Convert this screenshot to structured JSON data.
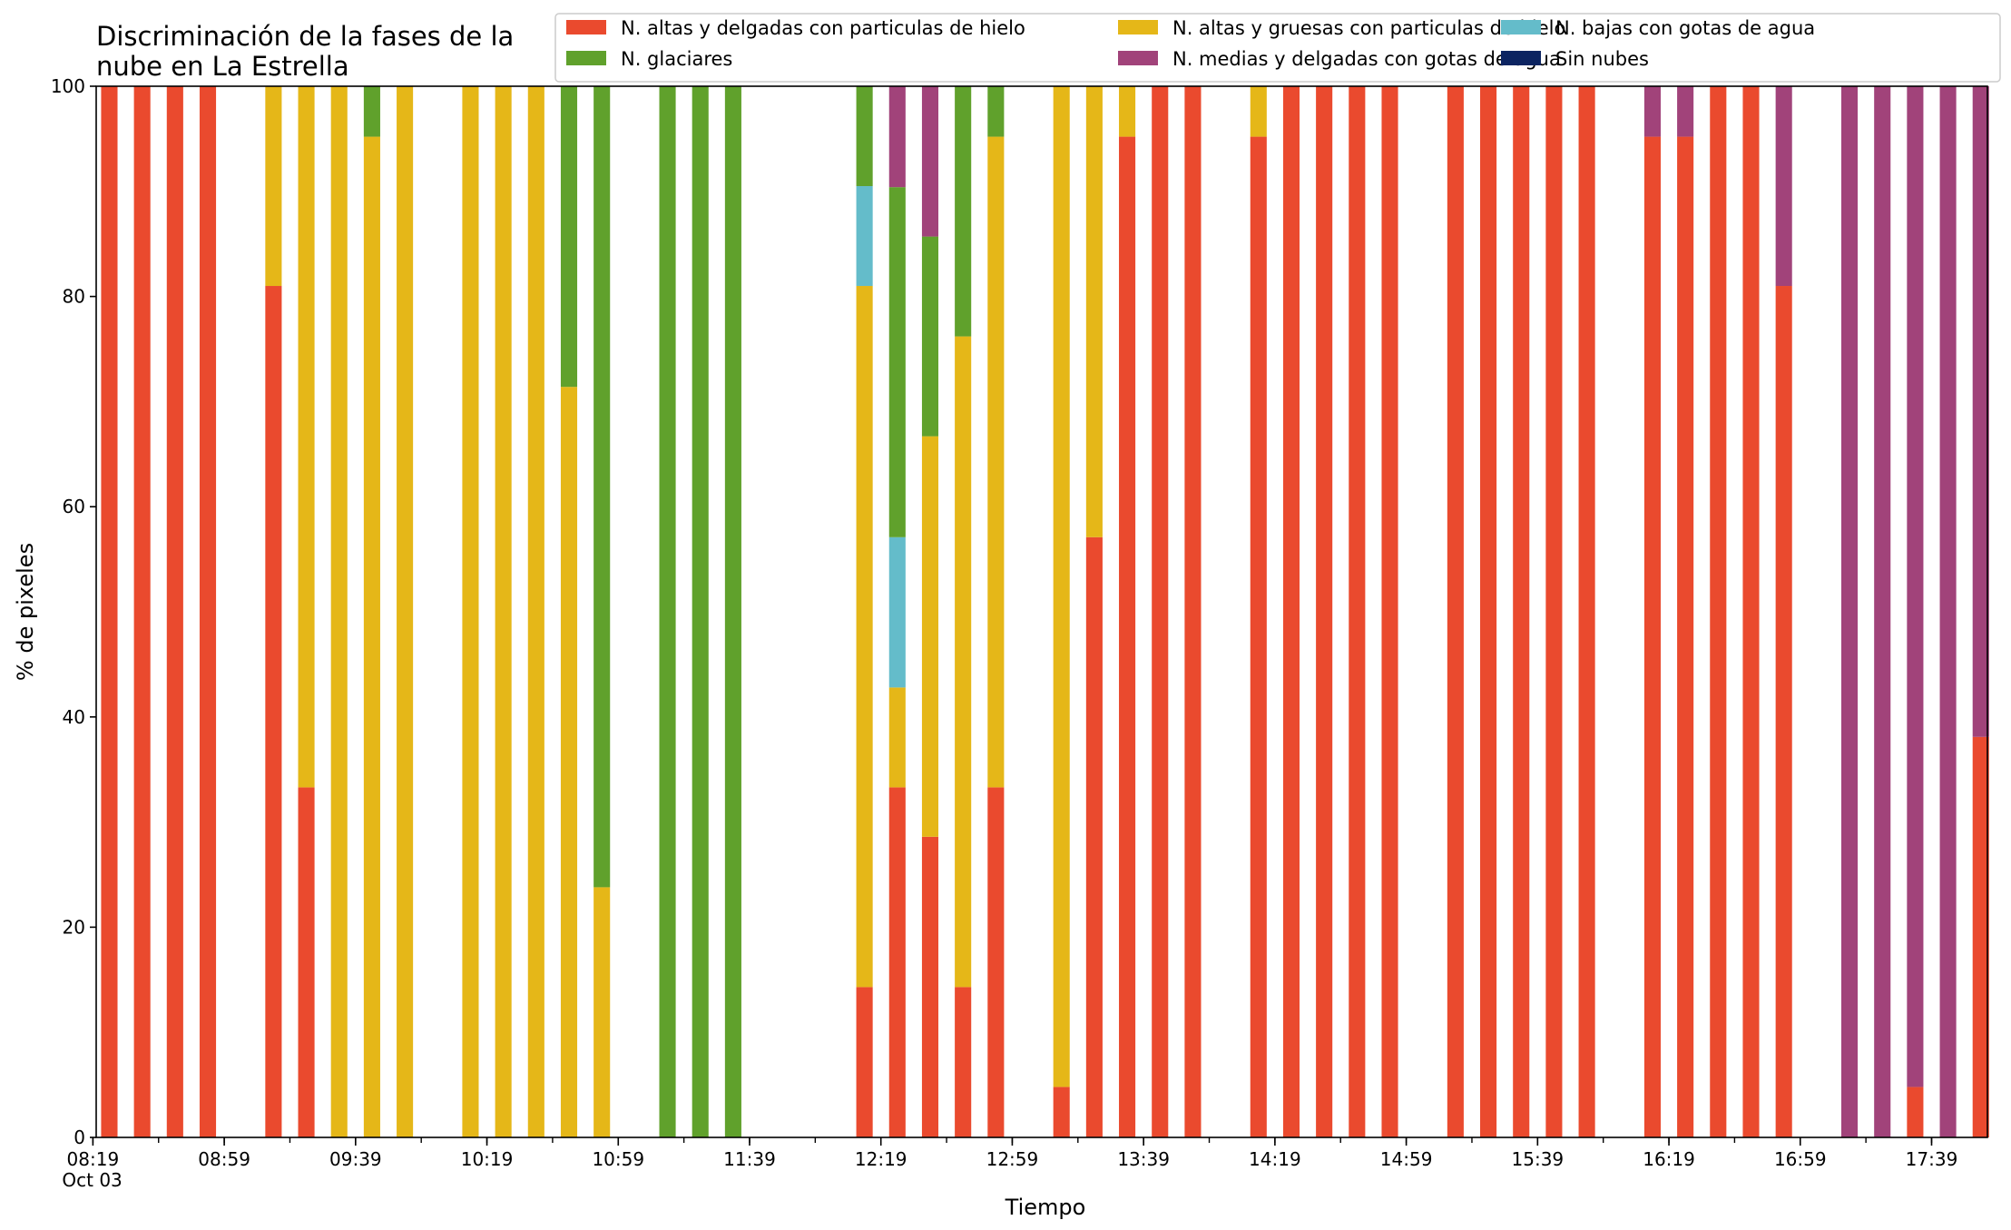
{
  "chart_data": {
    "type": "bar",
    "stacked": true,
    "title_lines": [
      "Discriminación de la fases de la",
      "nube en La Estrella"
    ],
    "xlabel": "Tiempo",
    "ylabel": "% de pixeles",
    "ylim": [
      0,
      100
    ],
    "yticks": [
      0,
      20,
      40,
      60,
      80,
      100
    ],
    "x_range_minutes": [
      500,
      1076
    ],
    "bar_interval_minutes": 10,
    "xtick_labels": [
      {
        "t": 499,
        "lines": [
          "08:19",
          "Oct 03"
        ]
      },
      {
        "t": 539,
        "lines": [
          "08:59"
        ]
      },
      {
        "t": 579,
        "lines": [
          "09:39"
        ]
      },
      {
        "t": 619,
        "lines": [
          "10:19"
        ]
      },
      {
        "t": 659,
        "lines": [
          "10:59"
        ]
      },
      {
        "t": 699,
        "lines": [
          "11:39"
        ]
      },
      {
        "t": 739,
        "lines": [
          "12:19"
        ]
      },
      {
        "t": 779,
        "lines": [
          "12:59"
        ]
      },
      {
        "t": 819,
        "lines": [
          "13:39"
        ]
      },
      {
        "t": 859,
        "lines": [
          "14:19"
        ]
      },
      {
        "t": 899,
        "lines": [
          "14:59"
        ]
      },
      {
        "t": 939,
        "lines": [
          "15:39"
        ]
      },
      {
        "t": 979,
        "lines": [
          "16:19"
        ]
      },
      {
        "t": 1019,
        "lines": [
          "16:59"
        ]
      },
      {
        "t": 1059,
        "lines": [
          "17:39"
        ]
      }
    ],
    "series": [
      {
        "name": "N. altas y delgadas con particulas de hielo",
        "color": "#ea4a2e"
      },
      {
        "name": "N. altas y gruesas con particulas de hielo",
        "color": "#e5b718"
      },
      {
        "name": "N. bajas con gotas de agua",
        "color": "#64bcca"
      },
      {
        "name": "N. glaciares",
        "color": "#60a12c"
      },
      {
        "name": "N. medias y delgadas con gotas de agua",
        "color": "#a1437a"
      },
      {
        "name": "Sin nubes",
        "color": "#0c2461"
      }
    ],
    "bars": [
      {
        "t": 504,
        "values": [
          100,
          0,
          0,
          0,
          0,
          0
        ]
      },
      {
        "t": 514,
        "values": [
          100,
          0,
          0,
          0,
          0,
          0
        ]
      },
      {
        "t": 524,
        "values": [
          100,
          0,
          0,
          0,
          0,
          0
        ]
      },
      {
        "t": 534,
        "values": [
          100,
          0,
          0,
          0,
          0,
          0
        ]
      },
      {
        "t": 554,
        "values": [
          81,
          19,
          0,
          0,
          0,
          0
        ]
      },
      {
        "t": 564,
        "values": [
          33.3,
          66.7,
          0,
          0,
          0,
          0
        ]
      },
      {
        "t": 574,
        "values": [
          0,
          100,
          0,
          0,
          0,
          0
        ]
      },
      {
        "t": 584,
        "values": [
          0,
          95.2,
          0,
          4.8,
          0,
          0
        ]
      },
      {
        "t": 594,
        "values": [
          0,
          100,
          0,
          0,
          0,
          0
        ]
      },
      {
        "t": 614,
        "values": [
          0,
          100,
          0,
          0,
          0,
          0
        ]
      },
      {
        "t": 624,
        "values": [
          0,
          100,
          0,
          0,
          0,
          0
        ]
      },
      {
        "t": 634,
        "values": [
          0,
          100,
          0,
          0,
          0,
          0
        ]
      },
      {
        "t": 644,
        "values": [
          0,
          71.4,
          0,
          28.6,
          0,
          0
        ]
      },
      {
        "t": 654,
        "values": [
          0,
          23.8,
          0,
          76.2,
          0,
          0
        ]
      },
      {
        "t": 674,
        "values": [
          0,
          0,
          0,
          100,
          0,
          0
        ]
      },
      {
        "t": 684,
        "values": [
          0,
          0,
          0,
          100,
          0,
          0
        ]
      },
      {
        "t": 694,
        "values": [
          0,
          0,
          0,
          100,
          0,
          0
        ]
      },
      {
        "t": 734,
        "values": [
          14.3,
          66.7,
          9.5,
          9.5,
          0,
          0
        ]
      },
      {
        "t": 744,
        "values": [
          33.3,
          9.5,
          14.3,
          33.3,
          9.6,
          0
        ]
      },
      {
        "t": 754,
        "values": [
          28.6,
          38.1,
          0,
          19,
          14.3,
          0
        ]
      },
      {
        "t": 764,
        "values": [
          14.3,
          61.9,
          0,
          23.8,
          0,
          0
        ]
      },
      {
        "t": 774,
        "values": [
          33.3,
          61.9,
          0,
          4.8,
          0,
          0
        ]
      },
      {
        "t": 794,
        "values": [
          4.8,
          95.2,
          0,
          0,
          0,
          0
        ]
      },
      {
        "t": 804,
        "values": [
          57.1,
          42.9,
          0,
          0,
          0,
          0
        ]
      },
      {
        "t": 814,
        "values": [
          95.2,
          4.8,
          0,
          0,
          0,
          0
        ]
      },
      {
        "t": 824,
        "values": [
          100,
          0,
          0,
          0,
          0,
          0
        ]
      },
      {
        "t": 834,
        "values": [
          100,
          0,
          0,
          0,
          0,
          0
        ]
      },
      {
        "t": 854,
        "values": [
          95.2,
          4.8,
          0,
          0,
          0,
          0
        ]
      },
      {
        "t": 864,
        "values": [
          100,
          0,
          0,
          0,
          0,
          0
        ]
      },
      {
        "t": 874,
        "values": [
          100,
          0,
          0,
          0,
          0,
          0
        ]
      },
      {
        "t": 884,
        "values": [
          100,
          0,
          0,
          0,
          0,
          0
        ]
      },
      {
        "t": 894,
        "values": [
          100,
          0,
          0,
          0,
          0,
          0
        ]
      },
      {
        "t": 914,
        "values": [
          100,
          0,
          0,
          0,
          0,
          0
        ]
      },
      {
        "t": 924,
        "values": [
          100,
          0,
          0,
          0,
          0,
          0
        ]
      },
      {
        "t": 934,
        "values": [
          100,
          0,
          0,
          0,
          0,
          0
        ]
      },
      {
        "t": 944,
        "values": [
          100,
          0,
          0,
          0,
          0,
          0
        ]
      },
      {
        "t": 954,
        "values": [
          100,
          0,
          0,
          0,
          0,
          0
        ]
      },
      {
        "t": 974,
        "values": [
          95.2,
          0,
          0,
          0,
          4.8,
          0
        ]
      },
      {
        "t": 984,
        "values": [
          95.2,
          0,
          0,
          0,
          4.8,
          0
        ]
      },
      {
        "t": 994,
        "values": [
          100,
          0,
          0,
          0,
          0,
          0
        ]
      },
      {
        "t": 1004,
        "values": [
          100,
          0,
          0,
          0,
          0,
          0
        ]
      },
      {
        "t": 1014,
        "values": [
          81,
          0,
          0,
          0,
          19,
          0
        ]
      },
      {
        "t": 1034,
        "values": [
          0,
          0,
          0,
          0,
          100,
          0
        ]
      },
      {
        "t": 1044,
        "values": [
          0,
          0,
          0,
          0,
          100,
          0
        ]
      },
      {
        "t": 1054,
        "values": [
          4.8,
          0,
          0,
          0,
          95.2,
          0
        ]
      },
      {
        "t": 1064,
        "values": [
          0,
          0,
          0,
          0,
          100,
          0
        ]
      },
      {
        "t": 1074,
        "values": [
          38.1,
          0,
          0,
          0,
          61.9,
          0
        ]
      }
    ],
    "legend_position": "top-right",
    "legend_columns": 3,
    "grid": false
  }
}
